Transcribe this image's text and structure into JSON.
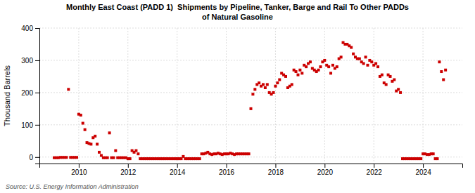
{
  "chart_data": {
    "type": "scatter",
    "title": "Monthly East Coast (PADD 1)  Shipments by Pipeline, Tanker, Barge and Rail To Other PADDs\nof Natural Gasoline",
    "ylabel": "Thousand Barrels",
    "source": "Source: U.S. Energy Information Administration",
    "color": "#cc0000",
    "marker": "square",
    "grid": true,
    "ylim": [
      -20,
      400
    ],
    "yticks": [
      0,
      100,
      200,
      300,
      400
    ],
    "xlim": [
      2008.4,
      2025.6
    ],
    "xticks": [
      2010,
      2012,
      2014,
      2016,
      2018,
      2020,
      2022,
      2024
    ],
    "x": [
      2009.0,
      2009.083,
      2009.167,
      2009.25,
      2009.333,
      2009.417,
      2009.5,
      2009.583,
      2009.667,
      2009.75,
      2009.833,
      2009.917,
      2010.0,
      2010.083,
      2010.167,
      2010.25,
      2010.333,
      2010.417,
      2010.5,
      2010.583,
      2010.667,
      2010.75,
      2010.833,
      2010.917,
      2011.0,
      2011.083,
      2011.167,
      2011.25,
      2011.333,
      2011.417,
      2011.5,
      2011.583,
      2011.667,
      2011.75,
      2011.833,
      2011.917,
      2012.0,
      2012.083,
      2012.167,
      2012.25,
      2012.333,
      2012.417,
      2012.5,
      2012.583,
      2012.667,
      2012.75,
      2012.833,
      2012.917,
      2013.0,
      2013.083,
      2013.167,
      2013.25,
      2013.333,
      2013.417,
      2013.5,
      2013.583,
      2013.667,
      2013.75,
      2013.833,
      2013.917,
      2014.0,
      2014.083,
      2014.167,
      2014.25,
      2014.333,
      2014.417,
      2014.5,
      2014.583,
      2014.667,
      2014.75,
      2014.833,
      2014.917,
      2015.0,
      2015.083,
      2015.167,
      2015.25,
      2015.333,
      2015.417,
      2015.5,
      2015.583,
      2015.667,
      2015.75,
      2015.833,
      2015.917,
      2016.0,
      2016.083,
      2016.167,
      2016.25,
      2016.333,
      2016.417,
      2016.5,
      2016.583,
      2016.667,
      2016.75,
      2016.833,
      2016.917,
      2017.0,
      2017.083,
      2017.167,
      2017.25,
      2017.333,
      2017.417,
      2017.5,
      2017.583,
      2017.667,
      2017.75,
      2017.833,
      2017.917,
      2018.0,
      2018.083,
      2018.167,
      2018.25,
      2018.333,
      2018.417,
      2018.5,
      2018.583,
      2018.667,
      2018.75,
      2018.833,
      2018.917,
      2019.0,
      2019.083,
      2019.167,
      2019.25,
      2019.333,
      2019.417,
      2019.5,
      2019.583,
      2019.667,
      2019.75,
      2019.833,
      2019.917,
      2020.0,
      2020.083,
      2020.167,
      2020.25,
      2020.333,
      2020.417,
      2020.5,
      2020.583,
      2020.667,
      2020.75,
      2020.833,
      2020.917,
      2021.0,
      2021.083,
      2021.167,
      2021.25,
      2021.333,
      2021.417,
      2021.5,
      2021.583,
      2021.667,
      2021.75,
      2021.833,
      2021.917,
      2022.0,
      2022.083,
      2022.167,
      2022.25,
      2022.333,
      2022.417,
      2022.5,
      2022.583,
      2022.667,
      2022.75,
      2022.833,
      2022.917,
      2023.0,
      2023.083,
      2023.167,
      2023.25,
      2023.333,
      2023.417,
      2023.5,
      2023.583,
      2023.667,
      2023.75,
      2023.833,
      2023.917,
      2024.0,
      2024.083,
      2024.167,
      2024.25,
      2024.333,
      2024.417,
      2024.5,
      2024.583,
      2024.667,
      2024.75,
      2024.833,
      2024.917
    ],
    "values": [
      -2,
      -2,
      -2,
      -1,
      -1,
      -1,
      -1,
      210,
      -1,
      -1,
      -1,
      -1,
      133,
      130,
      105,
      85,
      45,
      42,
      40,
      60,
      65,
      40,
      15,
      5,
      -2,
      -2,
      -2,
      75,
      -2,
      -2,
      20,
      -2,
      -2,
      -2,
      -2,
      -2,
      -5,
      -5,
      20,
      15,
      20,
      10,
      -5,
      -5,
      -5,
      -5,
      -5,
      -5,
      -5,
      -5,
      -5,
      -5,
      -5,
      -5,
      -5,
      -5,
      -5,
      -5,
      -5,
      -5,
      -5,
      -5,
      -5,
      2,
      -5,
      -5,
      -5,
      -5,
      -5,
      -5,
      -5,
      -5,
      10,
      10,
      12,
      15,
      10,
      8,
      10,
      10,
      12,
      10,
      8,
      10,
      10,
      10,
      12,
      10,
      8,
      10,
      10,
      10,
      10,
      10,
      10,
      10,
      150,
      195,
      210,
      225,
      230,
      220,
      225,
      215,
      225,
      200,
      195,
      200,
      220,
      230,
      240,
      260,
      255,
      250,
      215,
      220,
      225,
      270,
      265,
      255,
      270,
      260,
      285,
      280,
      290,
      295,
      275,
      270,
      265,
      270,
      280,
      295,
      300,
      285,
      280,
      260,
      285,
      275,
      280,
      305,
      310,
      355,
      350,
      350,
      345,
      340,
      320,
      310,
      305,
      305,
      295,
      290,
      310,
      285,
      300,
      295,
      285,
      290,
      280,
      250,
      255,
      230,
      225,
      255,
      250,
      235,
      240,
      205,
      210,
      200,
      -5,
      -5,
      -5,
      -5,
      -5,
      -5,
      -5,
      -5,
      -5,
      -5,
      10,
      10,
      8,
      8,
      10,
      10,
      -5,
      -5,
      295,
      265,
      240,
      270
    ]
  }
}
